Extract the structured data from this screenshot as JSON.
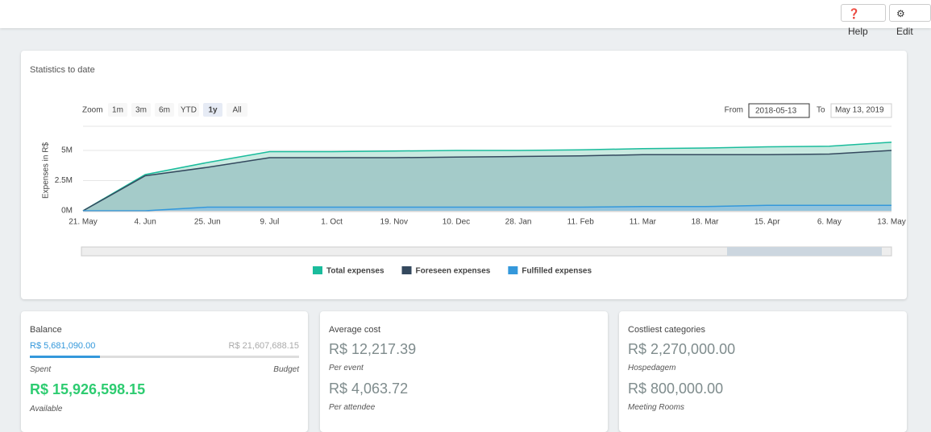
{
  "header": {
    "buttons": [
      "Help",
      "Edit"
    ]
  },
  "statistics": {
    "title": "Statistics to date",
    "zoom_label": "Zoom",
    "zoom_options": [
      "1m",
      "3m",
      "6m",
      "YTD",
      "1y",
      "All"
    ],
    "zoom_selected": "1y",
    "from_label": "From",
    "from": "2018-05-13",
    "to_label": "To",
    "to": "May 13, 2019",
    "chart": {
      "type": "area",
      "y_label": "Expenses in R$",
      "categories": [
        "21. May",
        "4. Jun",
        "25. Jun",
        "9. Jul",
        "1. Oct",
        "19. Nov",
        "10. Dec",
        "28. Jan",
        "11. Feb",
        "11. Mar",
        "18. Mar",
        "15. Apr",
        "6. May",
        "13. May"
      ],
      "series": [
        {
          "name": "Total expenses",
          "color": "#1abc9c",
          "fill": "#bfe6dc",
          "values": [
            0,
            3000000,
            4000000,
            4900000,
            4900000,
            4950000,
            5000000,
            5000000,
            5050000,
            5150000,
            5200000,
            5300000,
            5350000,
            5680000
          ]
        },
        {
          "name": "Foreseen expenses",
          "color": "#34495e",
          "fill": "#9ec6c4",
          "values": [
            0,
            2900000,
            3600000,
            4400000,
            4400000,
            4400000,
            4450000,
            4500000,
            4550000,
            4650000,
            4650000,
            4650000,
            4700000,
            5000000
          ]
        },
        {
          "name": "Fulfilled expenses",
          "color": "#3498db",
          "fill": "#8fc3df",
          "values": [
            0,
            0,
            300000,
            300000,
            300000,
            300000,
            300000,
            300000,
            300000,
            350000,
            350000,
            450000,
            450000,
            450000
          ]
        }
      ],
      "ylim": [
        0,
        7000000
      ],
      "yticks": [
        {
          "value": 0,
          "label": "0M"
        },
        {
          "value": 2500000,
          "label": "2.5M"
        },
        {
          "value": 5000000,
          "label": "5M"
        }
      ],
      "grid": true
    }
  },
  "balance": {
    "title": "Balance",
    "spent": "R$ 5,681,090.00",
    "budget": "R$ 21,607,688.15",
    "spent_label": "Spent",
    "budget_label": "Budget",
    "available": "R$ 15,926,598.15",
    "available_label": "Available"
  },
  "cards": [
    {
      "title": "Average cost",
      "items": [
        {
          "value": "R$ 12,217.39",
          "caption": "Per event"
        },
        {
          "value": "R$ 4,063.72",
          "caption": "Per attendee"
        }
      ]
    },
    {
      "title": "Costliest categories",
      "items": [
        {
          "value": "R$ 2,270,000.00",
          "caption": "Hospedagem"
        },
        {
          "value": "R$ 800,000.00",
          "caption": "Meeting Rooms"
        }
      ]
    }
  ]
}
